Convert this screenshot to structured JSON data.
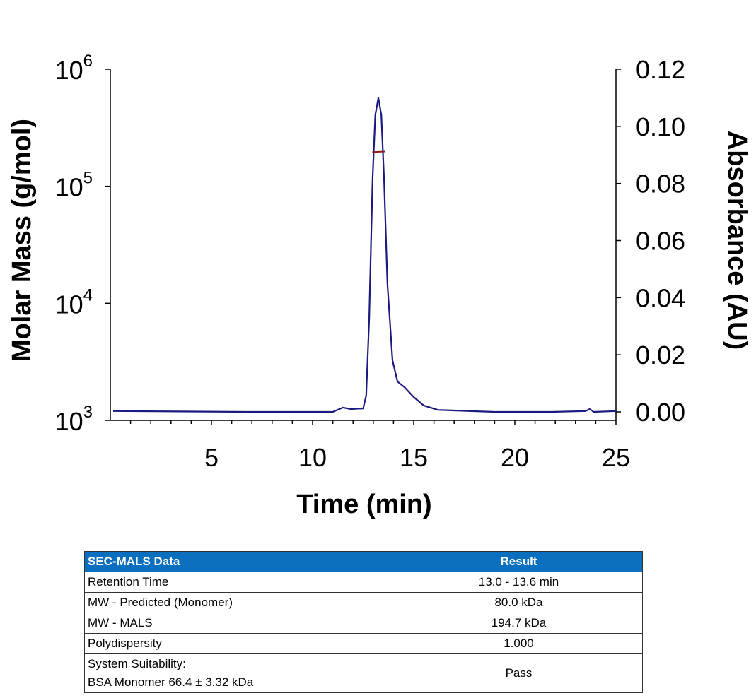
{
  "chart_data": {
    "type": "line",
    "xlabel": "Time (min)",
    "ylabel_left": "Molar Mass (g/mol)",
    "ylabel_right": "Absorbance (AU)",
    "xlim": [
      0,
      25
    ],
    "x_ticks": [
      5,
      10,
      15,
      20,
      25
    ],
    "ylim_left": [
      1000,
      1000000
    ],
    "left_scale": "log",
    "left_ticks": [
      {
        "base": "10",
        "exp": "3",
        "value": 1000
      },
      {
        "base": "10",
        "exp": "4",
        "value": 10000
      },
      {
        "base": "10",
        "exp": "5",
        "value": 100000
      },
      {
        "base": "10",
        "exp": "6",
        "value": 1000000
      }
    ],
    "ylim_right": [
      0,
      0.12
    ],
    "right_ticks": [
      "0.00",
      "0.02",
      "0.04",
      "0.06",
      "0.08",
      "0.10",
      "0.12"
    ],
    "grid": false,
    "series": [
      {
        "axis": "right",
        "color": "#1a1a80",
        "x": [
          0.14,
          6.8,
          11.0,
          11.5,
          11.9,
          12.5,
          12.65,
          12.8,
          12.97,
          13.1,
          13.25,
          13.4,
          13.53,
          13.7,
          13.95,
          14.2,
          14.55,
          15.0,
          15.5,
          16.2,
          19.0,
          21.8,
          23.5,
          23.7,
          23.9,
          25.0
        ],
        "y": [
          0.0003,
          0.0,
          0.0,
          0.0015,
          0.001,
          0.0012,
          0.0057,
          0.033,
          0.082,
          0.104,
          0.11,
          0.104,
          0.082,
          0.045,
          0.018,
          0.0106,
          0.0086,
          0.0052,
          0.0022,
          0.0007,
          0.0,
          0.0,
          0.0003,
          0.001,
          0.0,
          0.0003
        ]
      },
      {
        "axis": "left",
        "color": "#8b1a1a",
        "x": [
          12.95,
          13.25,
          13.6
        ],
        "y": [
          196000,
          197000,
          198000
        ]
      }
    ]
  },
  "table": {
    "headers": [
      "SEC-MALS Data",
      "Result"
    ],
    "rows": [
      {
        "label": "Retention Time",
        "value": "13.0 - 13.6 min"
      },
      {
        "label": "MW - Predicted (Monomer)",
        "value": "80.0 kDa"
      },
      {
        "label": "MW - MALS",
        "value": "194.7 kDa"
      },
      {
        "label": "Polydispersity",
        "value": "1.000"
      }
    ],
    "last_row": {
      "label_line1": "System Suitability:",
      "label_line2": "BSA Monomer 66.4 ± 3.32 kDa",
      "value": "Pass"
    },
    "header_color": "#0b6fc0"
  }
}
